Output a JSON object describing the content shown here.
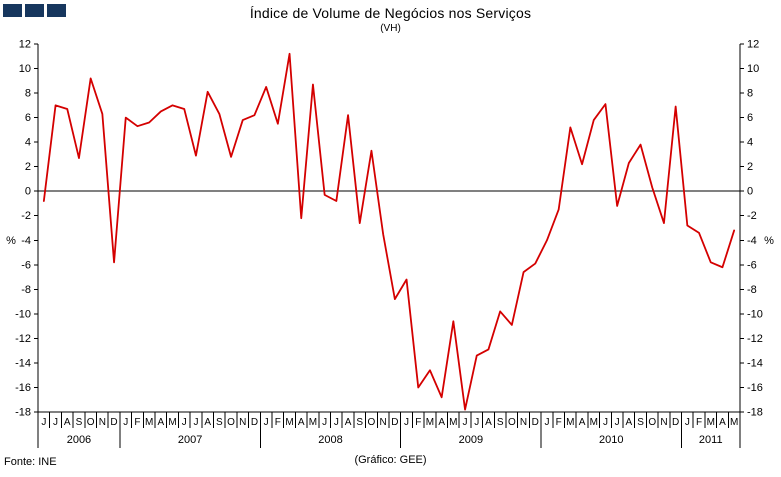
{
  "colors": {
    "logo": "#17375E",
    "line": "#D40000",
    "axis": "#000000"
  },
  "footer": {
    "source": "Fonte: INE",
    "credit": "(Gráfico: GEE)"
  },
  "chart_data": {
    "type": "line",
    "title": "Índice de Volume de Negócios nos Serviços",
    "subtitle": "(VH)",
    "unit": "%",
    "ylim": [
      -18,
      12
    ],
    "ytick_step": 2,
    "unit_row_value": -4,
    "line_color": "#D40000",
    "grid": "off",
    "legend": "none",
    "x_labels": [
      "J",
      "J",
      "A",
      "S",
      "O",
      "N",
      "D",
      "J",
      "F",
      "M",
      "A",
      "M",
      "J",
      "J",
      "A",
      "S",
      "O",
      "N",
      "D",
      "J",
      "F",
      "M",
      "A",
      "M",
      "J",
      "J",
      "A",
      "S",
      "O",
      "N",
      "D",
      "J",
      "F",
      "M",
      "A",
      "M",
      "J",
      "J",
      "A",
      "S",
      "O",
      "N",
      "D",
      "J",
      "F",
      "M",
      "A",
      "M",
      "J",
      "J",
      "A",
      "S",
      "O",
      "N",
      "D",
      "J",
      "F",
      "M",
      "A",
      "M"
    ],
    "year_groups": [
      {
        "label": "2006",
        "count": 7
      },
      {
        "label": "2007",
        "count": 12
      },
      {
        "label": "2008",
        "count": 12
      },
      {
        "label": "2009",
        "count": 12
      },
      {
        "label": "2010",
        "count": 12
      },
      {
        "label": "2011",
        "count": 5
      }
    ],
    "values": [
      -0.8,
      7.0,
      6.7,
      2.7,
      9.2,
      6.3,
      -5.8,
      6.0,
      5.3,
      5.6,
      6.5,
      7.0,
      6.7,
      2.9,
      8.1,
      6.3,
      2.8,
      5.8,
      6.2,
      8.5,
      5.5,
      11.2,
      -2.2,
      8.7,
      -0.3,
      -0.8,
      6.2,
      -2.6,
      3.3,
      -3.5,
      -8.8,
      -7.2,
      -16.0,
      -14.6,
      -16.8,
      -10.6,
      -17.8,
      -13.4,
      -12.9,
      -9.8,
      -10.9,
      -6.6,
      -5.9,
      -4.0,
      -1.5,
      5.2,
      2.2,
      5.8,
      7.1,
      -1.2,
      2.3,
      3.8,
      0.3,
      -2.6,
      6.9,
      -2.8,
      -3.4,
      -5.8,
      -6.2,
      -3.2
    ]
  }
}
